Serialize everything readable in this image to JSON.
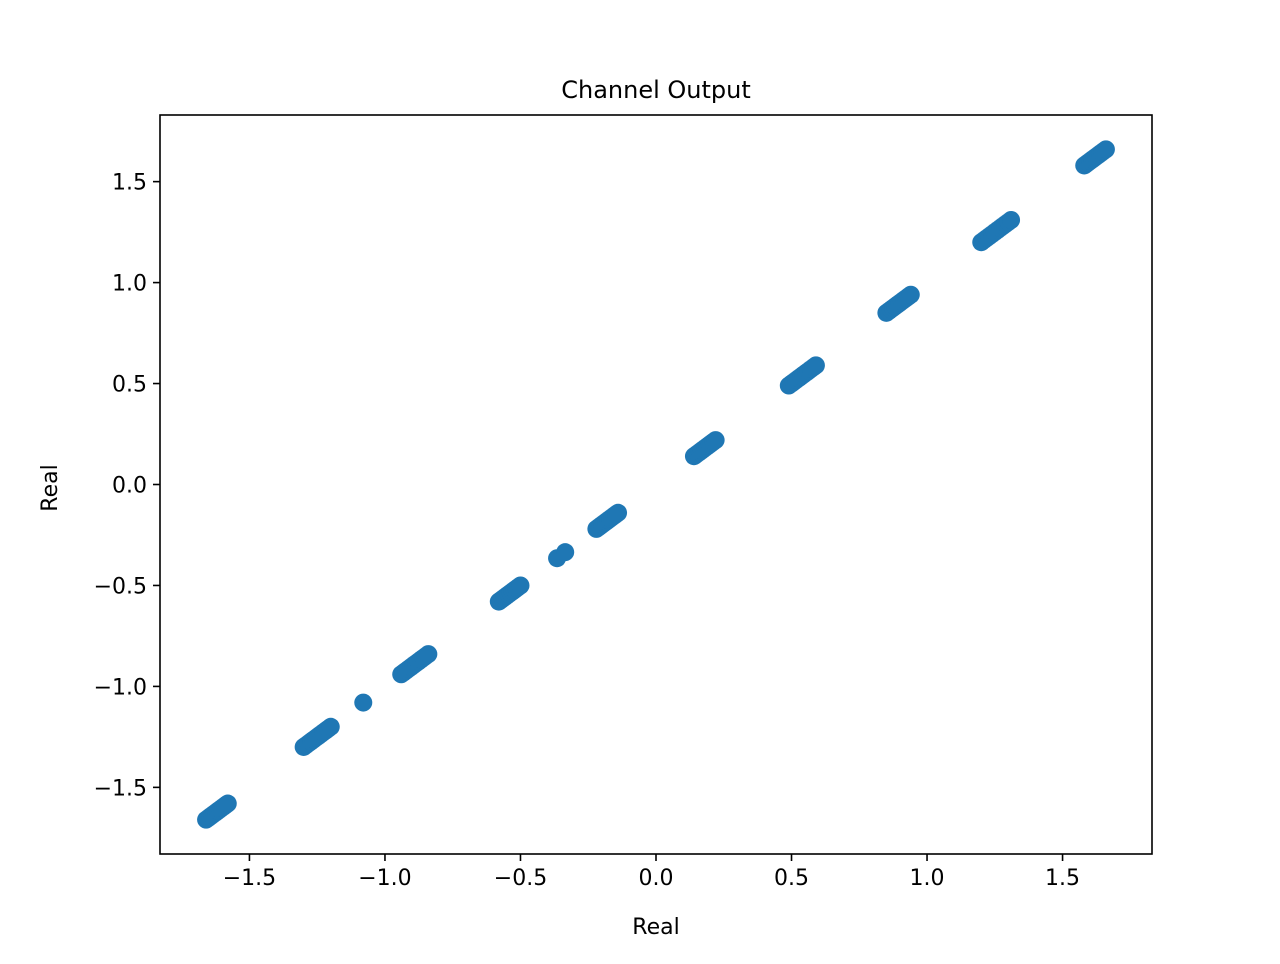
{
  "chart_data": {
    "type": "scatter",
    "title": "Channel Output",
    "xlabel": "Real",
    "ylabel": "Real",
    "xlim": [
      -1.83,
      1.83
    ],
    "ylim": [
      -1.83,
      1.83
    ],
    "xticks": [
      -1.5,
      -1.0,
      -0.5,
      0.0,
      0.5,
      1.0,
      1.5
    ],
    "xtick_labels": [
      "−1.5",
      "−1.0",
      "−0.5",
      "0.0",
      "0.5",
      "1.0",
      "1.5"
    ],
    "yticks": [
      -1.5,
      -1.0,
      -0.5,
      0.0,
      0.5,
      1.0,
      1.5
    ],
    "ytick_labels": [
      "−1.5",
      "−1.0",
      "−0.5",
      "0.0",
      "0.5",
      "1.0",
      "1.5"
    ],
    "grid": false,
    "legend": false,
    "color": "#1f77b4",
    "series": [
      {
        "clusters": [
          {
            "from": -1.66,
            "to": -1.58
          },
          {
            "from": -1.3,
            "to": -1.2
          },
          {
            "from": -1.08,
            "to": -1.08
          },
          {
            "from": -0.94,
            "to": -0.84
          },
          {
            "from": -0.58,
            "to": -0.5
          },
          {
            "from": -0.365,
            "to": -0.365
          },
          {
            "from": -0.335,
            "to": -0.335
          },
          {
            "from": -0.22,
            "to": -0.14
          },
          {
            "from": 0.14,
            "to": 0.22
          },
          {
            "from": 0.49,
            "to": 0.59
          },
          {
            "from": 0.85,
            "to": 0.94
          },
          {
            "from": 1.2,
            "to": 1.31
          },
          {
            "from": 1.58,
            "to": 1.66
          }
        ]
      }
    ]
  }
}
